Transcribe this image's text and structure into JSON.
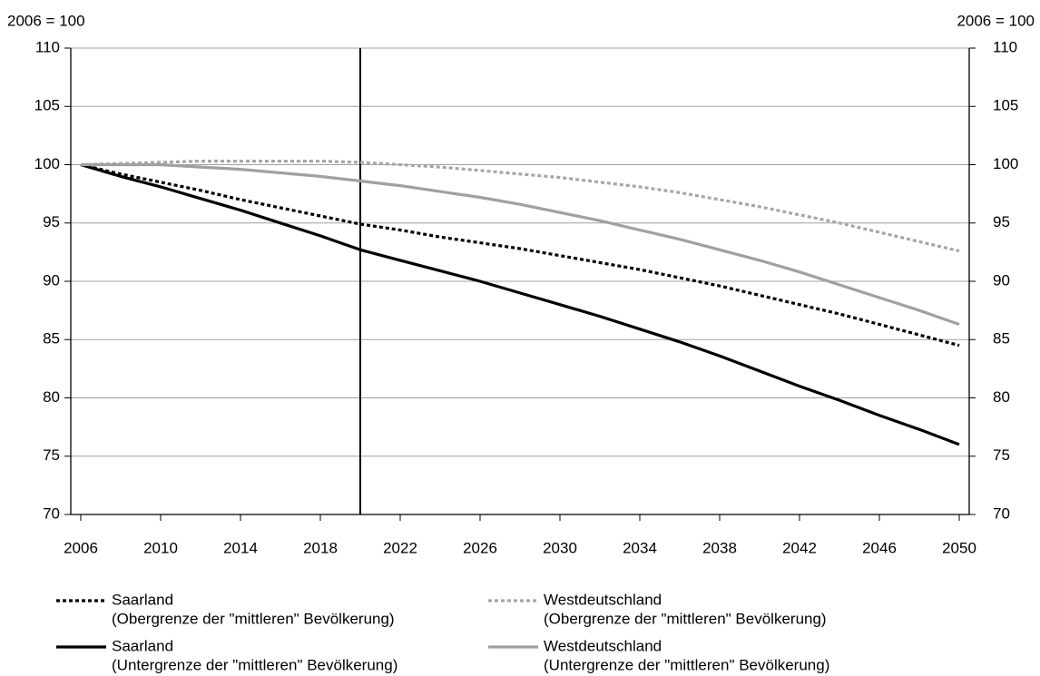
{
  "chart_data": {
    "type": "line",
    "y_label": "2006 = 100",
    "y2_label": "2006 = 100",
    "x": [
      2006,
      2008,
      2010,
      2012,
      2014,
      2016,
      2018,
      2020,
      2022,
      2024,
      2026,
      2028,
      2030,
      2032,
      2034,
      2036,
      2038,
      2040,
      2042,
      2044,
      2046,
      2048,
      2050
    ],
    "xlim": [
      2005.5,
      2050.5
    ],
    "xticks": [
      2006,
      2010,
      2014,
      2018,
      2022,
      2026,
      2030,
      2034,
      2038,
      2042,
      2046,
      2050
    ],
    "ylim": [
      70,
      110
    ],
    "yticks": [
      70,
      75,
      80,
      85,
      90,
      95,
      100,
      105,
      110
    ],
    "y2lim": [
      70,
      110
    ],
    "y2ticks": [
      70,
      75,
      80,
      85,
      90,
      95,
      100,
      105,
      110
    ],
    "grid": true,
    "marker_x": 2020,
    "series": [
      {
        "name": "Saarland",
        "name_detail": "(Obergrenze der \"mittleren\" Bevölkerung)",
        "color": "#000000",
        "style": "dotted",
        "values": [
          100,
          99.2,
          98.5,
          97.8,
          97.0,
          96.3,
          95.6,
          94.9,
          94.4,
          93.8,
          93.3,
          92.8,
          92.2,
          91.6,
          91.0,
          90.3,
          89.6,
          88.8,
          88.0,
          87.2,
          86.3,
          85.4,
          84.5
        ]
      },
      {
        "name": "Westdeutschland",
        "name_detail": "(Obergrenze der \"mittleren\" Bevölkerung)",
        "color": "#a6a6a6",
        "style": "dotted",
        "values": [
          100,
          100.1,
          100.2,
          100.3,
          100.3,
          100.3,
          100.3,
          100.2,
          100.0,
          99.8,
          99.5,
          99.2,
          98.9,
          98.5,
          98.1,
          97.6,
          97.0,
          96.4,
          95.7,
          95.0,
          94.2,
          93.4,
          92.6
        ]
      },
      {
        "name": "Saarland",
        "name_detail": "(Untergrenze der \"mittleren\" Bevölkerung)",
        "color": "#000000",
        "style": "solid",
        "values": [
          100,
          99.0,
          98.1,
          97.1,
          96.1,
          95.0,
          93.9,
          92.7,
          91.8,
          90.9,
          90.0,
          89.0,
          88.0,
          87.0,
          85.9,
          84.8,
          83.6,
          82.3,
          81.0,
          79.8,
          78.5,
          77.3,
          76.0
        ]
      },
      {
        "name": "Westdeutschland",
        "name_detail": "(Untergrenze der \"mittleren\" Bevölkerung)",
        "color": "#a0a0a0",
        "style": "solid",
        "values": [
          100,
          100.0,
          100.0,
          99.8,
          99.6,
          99.3,
          99.0,
          98.6,
          98.2,
          97.7,
          97.2,
          96.6,
          95.9,
          95.2,
          94.4,
          93.6,
          92.7,
          91.8,
          90.8,
          89.7,
          88.6,
          87.5,
          86.3
        ]
      }
    ]
  }
}
